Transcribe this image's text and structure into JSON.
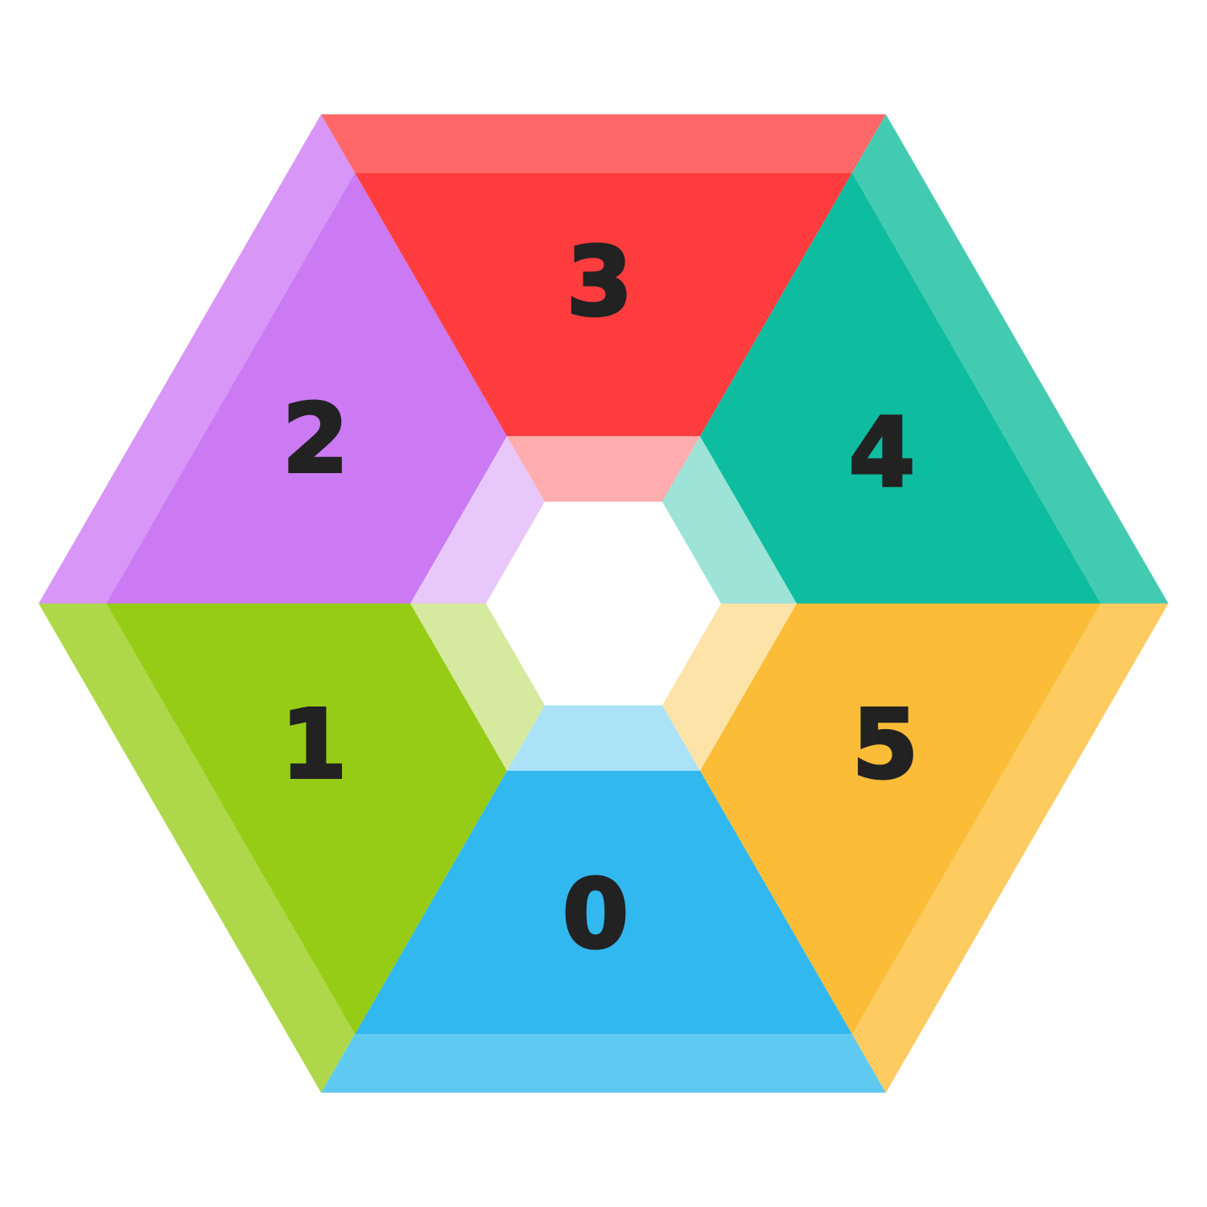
{
  "diagram": {
    "segments": [
      {
        "label": "0",
        "color": "#31B8EE",
        "outer_bevel": "#60C9F1",
        "inner_bevel": "#ACE2F7"
      },
      {
        "label": "1",
        "color": "#97CC16",
        "outer_bevel": "#AED84A",
        "inner_bevel": "#D5EA9E"
      },
      {
        "label": "2",
        "color": "#CB7AF4",
        "outer_bevel": "#D896F7",
        "inner_bevel": "#E8C8FA"
      },
      {
        "label": "3",
        "color": "#FF3D3F",
        "outer_bevel": "#FF6768",
        "inner_bevel": "#FFADAE"
      },
      {
        "label": "4",
        "color": "#0EBD9F",
        "outer_bevel": "#43CBB2",
        "inner_bevel": "#9DE3D8"
      },
      {
        "label": "5",
        "color": "#FBBD38",
        "outer_bevel": "#FDCB60",
        "inner_bevel": "#FEE3A8"
      }
    ],
    "center_color": "#FFFFFF",
    "label_color": "#222222"
  }
}
